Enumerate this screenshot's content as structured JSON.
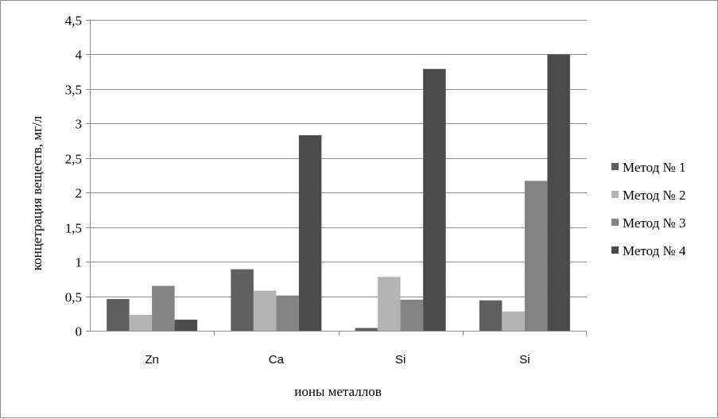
{
  "chart_data": {
    "type": "bar",
    "title": "",
    "xlabel": "ионы металлов",
    "ylabel": "концетрация веществ, мг/л",
    "categories": [
      "Zn",
      "Ca",
      "Si",
      "Si"
    ],
    "ylim": [
      0,
      4.5
    ],
    "yticks": [
      "0",
      "0,5",
      "1",
      "1,5",
      "2",
      "2,5",
      "3",
      "3,5",
      "4",
      "4,5"
    ],
    "grid": true,
    "legend_position": "right",
    "series": [
      {
        "name": "Метод № 1",
        "color": "#5f5f5f",
        "values": [
          0.46,
          0.89,
          0.04,
          0.44
        ]
      },
      {
        "name": "Метод № 2",
        "color": "#b4b4b4",
        "values": [
          0.23,
          0.58,
          0.78,
          0.28
        ]
      },
      {
        "name": "Метод № 3",
        "color": "#838383",
        "values": [
          0.65,
          0.51,
          0.45,
          2.17
        ]
      },
      {
        "name": "Метод № 4",
        "color": "#4b4b4b",
        "values": [
          0.16,
          2.83,
          3.79,
          4.0
        ]
      }
    ]
  }
}
